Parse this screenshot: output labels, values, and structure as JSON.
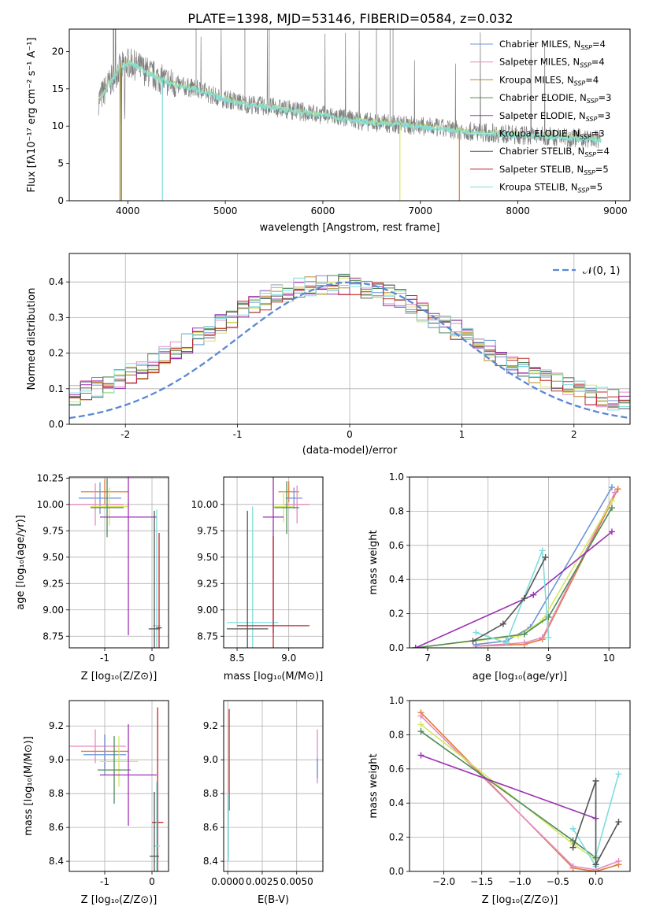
{
  "figure_title": "PLATE=1398, MJD=53146, FIBERID=0584, z=0.032",
  "colors": {
    "c1": "#6f94d8",
    "c2": "#e58abf",
    "c3": "#b5882b",
    "c4": "#4f8a57",
    "c5": "#9b30b4",
    "c6": "#d2e860",
    "c7": "#555555",
    "c8": "#c0282a",
    "c9": "#7fdcdc",
    "c10": "#e07b39",
    "data": "#808080",
    "normal": "#5b87d6"
  },
  "legend_spectrum": [
    {
      "label": "Chabrier MILES, N",
      "sub": "SSP",
      "suffix": "=4",
      "color": "c1"
    },
    {
      "label": "Salpeter MILES, N",
      "sub": "SSP",
      "suffix": "=4",
      "color": "c2"
    },
    {
      "label": "Kroupa MILES, N",
      "sub": "SSP",
      "suffix": "=4",
      "color": "c3"
    },
    {
      "label": "Chabrier ELODIE, N",
      "sub": "SSP",
      "suffix": "=3",
      "color": "c4"
    },
    {
      "label": "Salpeter ELODIE, N",
      "sub": "SSP",
      "suffix": "=3",
      "color": "c5"
    },
    {
      "label": "Kroupa ELODIE, N",
      "sub": "SSP",
      "suffix": "=3",
      "color": "c6"
    },
    {
      "label": "Chabrier STELIB, N",
      "sub": "SSP",
      "suffix": "=4",
      "color": "c7"
    },
    {
      "label": "Salpeter STELIB, N",
      "sub": "SSP",
      "suffix": "=5",
      "color": "c8"
    },
    {
      "label": "Kroupa STELIB, N",
      "sub": "SSP",
      "suffix": "=5",
      "color": "c9"
    }
  ],
  "chart_data": [
    {
      "id": "spectrum",
      "type": "line",
      "xlabel": "wavelength [Angstrom, rest frame]",
      "ylabel": "Flux [fλ10⁻¹⁷ erg cm⁻² s⁻¹ A⁻¹]",
      "xlim": [
        3400,
        9150
      ],
      "ylim": [
        0,
        23
      ],
      "xticks": [
        4000,
        5000,
        6000,
        7000,
        8000,
        9000
      ],
      "yticks": [
        0,
        5,
        10,
        15,
        20
      ],
      "continuum": [
        [
          3700,
          13.5
        ],
        [
          3800,
          15.5
        ],
        [
          3900,
          17.5
        ],
        [
          4000,
          18.5
        ],
        [
          4100,
          18.0
        ],
        [
          4300,
          16.5
        ],
        [
          4500,
          15.5
        ],
        [
          4700,
          15.0
        ],
        [
          4900,
          14.0
        ],
        [
          5200,
          13.0
        ],
        [
          5500,
          12.5
        ],
        [
          6000,
          11.5
        ],
        [
          6500,
          10.5
        ],
        [
          7000,
          10.0
        ],
        [
          7500,
          9.3
        ],
        [
          8000,
          8.8
        ],
        [
          8500,
          8.5
        ],
        [
          8800,
          8.2
        ]
      ],
      "grid": false
    },
    {
      "id": "residuals",
      "type": "step",
      "xlabel": "(data-model)/error",
      "ylabel": "Normed distribution",
      "xlim": [
        -2.5,
        2.5
      ],
      "ylim": [
        0,
        0.48
      ],
      "xticks": [
        -2,
        -1,
        0,
        1,
        2
      ],
      "yticks": [
        0.0,
        0.1,
        0.2,
        0.3,
        0.4
      ],
      "legend": "𝒩(0, 1)",
      "legend_position": "top-right",
      "bin_width": 0.1,
      "grid": true
    },
    {
      "id": "age_vs_Z",
      "type": "errorbar",
      "xlabel": "Z [log₁₀(Z/Z⊙)]",
      "ylabel": "age  [log₁₀(age/yr)]",
      "xlim": [
        -1.75,
        0.35
      ],
      "ylim": [
        8.64,
        10.26
      ],
      "xticks": [
        -1,
        0
      ],
      "yticks": [
        8.75,
        9.0,
        9.25,
        9.5,
        9.75,
        10.0,
        10.25
      ],
      "points": [
        {
          "x": -1.0,
          "y": 10.12,
          "xe": 0.5,
          "ye": 0.12,
          "color": "c10"
        },
        {
          "x": -1.1,
          "y": 10.06,
          "xe": 0.45,
          "ye": 0.15,
          "color": "c1"
        },
        {
          "x": -1.2,
          "y": 10.0,
          "xe": 0.6,
          "ye": 0.2,
          "color": "c2"
        },
        {
          "x": -0.9,
          "y": 9.98,
          "xe": 0.4,
          "ye": 0.18,
          "color": "c6"
        },
        {
          "x": -0.95,
          "y": 9.97,
          "xe": 0.35,
          "ye": 0.28,
          "color": "c4"
        },
        {
          "x": -0.5,
          "y": 9.88,
          "xe": 0.6,
          "ye": 1.12,
          "color": "c5"
        },
        {
          "x": 0.1,
          "y": 8.85,
          "xe": 0.08,
          "ye": 1.1,
          "color": "c9"
        },
        {
          "x": 0.15,
          "y": 8.83,
          "xe": 0.06,
          "ye": 0.9,
          "color": "c8"
        },
        {
          "x": 0.05,
          "y": 8.82,
          "xe": 0.12,
          "ye": 1.12,
          "color": "c7"
        }
      ],
      "grid": true
    },
    {
      "id": "age_vs_mass",
      "type": "errorbar",
      "xlabel": "mass [log₁₀(M/M⊙)]",
      "ylabel": "",
      "xlim": [
        8.37,
        9.33
      ],
      "ylim": [
        8.64,
        10.26
      ],
      "xticks": [
        8.5,
        9.0
      ],
      "yticks": [
        8.75,
        9.0,
        9.25,
        9.5,
        9.75,
        10.0
      ],
      "points": [
        {
          "x": 9.0,
          "y": 10.12,
          "xe": 0.1,
          "ye": 0.1,
          "color": "c10"
        },
        {
          "x": 9.05,
          "y": 10.06,
          "xe": 0.08,
          "ye": 0.1,
          "color": "c1"
        },
        {
          "x": 9.08,
          "y": 10.0,
          "xe": 0.12,
          "ye": 0.18,
          "color": "c2"
        },
        {
          "x": 8.95,
          "y": 9.98,
          "xe": 0.1,
          "ye": 0.15,
          "color": "c6"
        },
        {
          "x": 8.98,
          "y": 9.97,
          "xe": 0.12,
          "ye": 0.25,
          "color": "c4"
        },
        {
          "x": 8.85,
          "y": 9.88,
          "xe": 0.1,
          "ye": 1.1,
          "color": "c5"
        },
        {
          "x": 8.65,
          "y": 8.88,
          "xe": 0.25,
          "ye": 1.1,
          "color": "c9"
        },
        {
          "x": 8.85,
          "y": 8.85,
          "xe": 0.35,
          "ye": 0.85,
          "color": "c8"
        },
        {
          "x": 8.6,
          "y": 8.82,
          "xe": 0.2,
          "ye": 1.12,
          "color": "c7"
        }
      ],
      "grid": true
    },
    {
      "id": "massweight_vs_age",
      "type": "line",
      "xlabel": "age  [log₁₀(age/yr)]",
      "ylabel": "mass weight",
      "xlim": [
        6.7,
        10.35
      ],
      "ylim": [
        0,
        1
      ],
      "xticks": [
        7,
        8,
        9,
        10
      ],
      "yticks": [
        0.0,
        0.2,
        0.4,
        0.6,
        0.8,
        1.0
      ],
      "series": [
        {
          "color": "c10",
          "x": [
            7.8,
            8.6,
            8.9,
            10.15
          ],
          "y": [
            0.01,
            0.02,
            0.05,
            0.93
          ]
        },
        {
          "color": "c2",
          "x": [
            7.8,
            8.6,
            8.9,
            10.1
          ],
          "y": [
            0.01,
            0.03,
            0.06,
            0.91
          ]
        },
        {
          "color": "c1",
          "x": [
            7.8,
            8.3,
            8.7,
            10.05
          ],
          "y": [
            0.02,
            0.04,
            0.12,
            0.94
          ]
        },
        {
          "color": "c6",
          "x": [
            6.8,
            8.5,
            8.9,
            10.05
          ],
          "y": [
            0.0,
            0.07,
            0.16,
            0.86
          ]
        },
        {
          "color": "c4",
          "x": [
            6.8,
            8.6,
            9.0,
            10.05
          ],
          "y": [
            0.0,
            0.08,
            0.18,
            0.82
          ]
        },
        {
          "color": "c5",
          "x": [
            6.8,
            8.75,
            10.05
          ],
          "y": [
            0.0,
            0.31,
            0.68
          ]
        },
        {
          "color": "c9",
          "x": [
            7.8,
            8.3,
            8.9,
            9.0
          ],
          "y": [
            0.09,
            0.03,
            0.57,
            0.06
          ]
        },
        {
          "color": "c7",
          "x": [
            7.75,
            8.25,
            8.6,
            8.95
          ],
          "y": [
            0.04,
            0.14,
            0.29,
            0.53
          ]
        }
      ],
      "grid": true
    },
    {
      "id": "mass_vs_Z",
      "type": "errorbar",
      "xlabel": "Z [log₁₀(Z/Z⊙)]",
      "ylabel": "mass [log₁₀(M/M⊙)]",
      "xlim": [
        -1.75,
        0.35
      ],
      "ylim": [
        8.34,
        9.35
      ],
      "xticks": [
        -1,
        0
      ],
      "yticks": [
        8.4,
        8.6,
        8.8,
        9.0,
        9.2
      ],
      "points": [
        {
          "x": -1.2,
          "y": 9.08,
          "xe": 0.65,
          "ye": 0.1,
          "color": "c2"
        },
        {
          "x": -1.0,
          "y": 9.05,
          "xe": 0.5,
          "ye": 0.1,
          "color": "c10"
        },
        {
          "x": -1.0,
          "y": 9.03,
          "xe": 0.45,
          "ye": 0.12,
          "color": "c1"
        },
        {
          "x": -0.7,
          "y": 8.99,
          "xe": 0.4,
          "ye": 0.15,
          "color": "c6"
        },
        {
          "x": -0.8,
          "y": 8.94,
          "xe": 0.35,
          "ye": 0.2,
          "color": "c4"
        },
        {
          "x": -0.5,
          "y": 8.91,
          "xe": 0.6,
          "ye": 0.3,
          "color": "c5"
        },
        {
          "x": 0.12,
          "y": 8.63,
          "xe": 0.12,
          "ye": 0.68,
          "color": "c8"
        },
        {
          "x": 0.1,
          "y": 8.49,
          "xe": 0.07,
          "ye": 0.38,
          "color": "c9"
        },
        {
          "x": 0.05,
          "y": 8.43,
          "xe": 0.1,
          "ye": 0.38,
          "color": "c7"
        }
      ],
      "grid": true
    },
    {
      "id": "mass_vs_ebv",
      "type": "errorbar",
      "xlabel": "E(B-V)",
      "ylabel": "",
      "xlim": [
        -0.0003,
        0.0069
      ],
      "ylim": [
        8.34,
        9.35
      ],
      "xticks": [
        0.0,
        0.0025,
        0.005
      ],
      "xtick_labels": [
        "0.0000",
        "0.0025",
        "0.0050"
      ],
      "yticks": [
        8.4,
        8.6,
        8.8,
        9.0,
        9.2
      ],
      "points": [
        {
          "x": 0.0001,
          "y": 9.0,
          "xe": 0,
          "ye": 0.3,
          "color": "c8"
        },
        {
          "x": 5e-05,
          "y": 8.6,
          "xe": 0,
          "ye": 0.2,
          "color": "c9"
        },
        {
          "x": 0.0065,
          "y": 9.02,
          "xe": 0,
          "ye": 0.16,
          "color": "c2"
        },
        {
          "x": 0.0065,
          "y": 8.95,
          "xe": 0,
          "ye": 0.06,
          "color": "c1"
        }
      ],
      "grid": true
    },
    {
      "id": "massweight_vs_Z",
      "type": "line",
      "xlabel": "Z [log₁₀(Z/Z⊙)]",
      "ylabel": "mass weight",
      "xlim": [
        -2.45,
        0.45
      ],
      "ylim": [
        0,
        1
      ],
      "xticks": [
        -2.0,
        -1.5,
        -1.0,
        -0.5,
        0.0
      ],
      "yticks": [
        0.0,
        0.2,
        0.4,
        0.6,
        0.8,
        1.0
      ],
      "series": [
        {
          "color": "c10",
          "x": [
            -2.3,
            -0.3,
            0.0,
            0.3
          ],
          "y": [
            0.93,
            0.02,
            0.0,
            0.04
          ]
        },
        {
          "color": "c2",
          "x": [
            -2.3,
            -0.3,
            0.0,
            0.3
          ],
          "y": [
            0.91,
            0.03,
            0.01,
            0.06
          ]
        },
        {
          "color": "c6",
          "x": [
            -2.3,
            -0.3,
            0.0
          ],
          "y": [
            0.86,
            0.16,
            0.07
          ]
        },
        {
          "color": "c4",
          "x": [
            -2.3,
            -0.3,
            0.0
          ],
          "y": [
            0.82,
            0.18,
            0.08
          ]
        },
        {
          "color": "c5",
          "x": [
            -2.3,
            0.0
          ],
          "y": [
            0.68,
            0.31
          ]
        },
        {
          "color": "c9",
          "x": [
            -0.3,
            0.0,
            0.0,
            0.3
          ],
          "y": [
            0.25,
            0.03,
            0.09,
            0.57
          ]
        },
        {
          "color": "c7",
          "x": [
            -0.3,
            0.0,
            0.0,
            0.3,
            0.0
          ],
          "y": [
            0.14,
            0.53,
            0.04,
            0.29,
            0.04
          ]
        }
      ],
      "grid": true
    }
  ]
}
